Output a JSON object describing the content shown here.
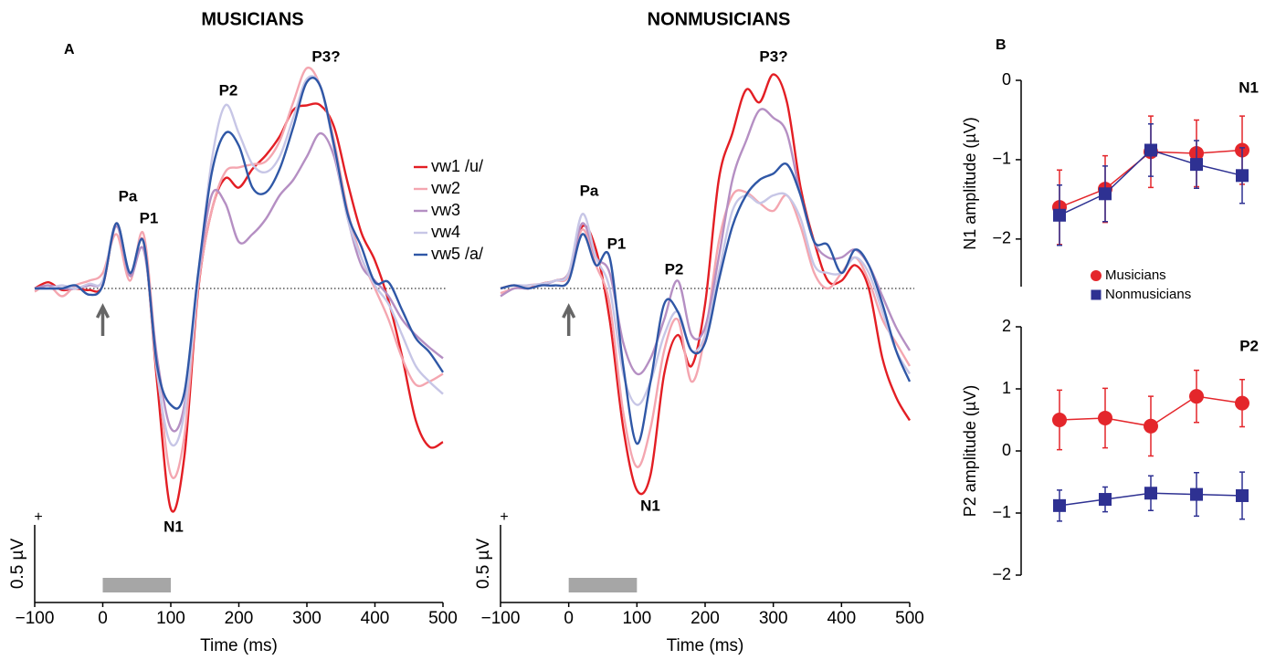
{
  "chart_data": [
    {
      "type": "erp",
      "panel_label": "A",
      "title": "MUSICIANS",
      "xlabel": "Time (ms)",
      "x": [
        -100,
        -80,
        -60,
        -40,
        -20,
        0,
        20,
        40,
        60,
        80,
        100,
        120,
        140,
        160,
        180,
        200,
        220,
        240,
        260,
        280,
        300,
        320,
        340,
        360,
        380,
        400,
        420,
        440,
        460,
        480,
        500
      ],
      "xlim": [
        -100,
        500
      ],
      "xticks": [
        {
          "value": -100,
          "label": "−100"
        },
        0,
        100,
        200,
        300,
        400,
        500
      ],
      "ylim": [
        -1.5,
        1.5
      ],
      "zero_line": true,
      "scale_bar": {
        "value": 0.5,
        "label": "0.5 µV",
        "sign": "+"
      },
      "stimulus": [
        0,
        100
      ],
      "annotations": [
        "Pa",
        "P1",
        "N1",
        "P2",
        "P3?"
      ],
      "series": [
        {
          "name": "vw1 /u/",
          "color": "#e31e24",
          "values": [
            0,
            0.04,
            -0.01,
            0,
            -0.01,
            0.02,
            0.42,
            0.09,
            0.3,
            -0.61,
            -1.42,
            -1.08,
            -0.02,
            0.5,
            0.71,
            0.65,
            0.77,
            0.86,
            0.98,
            1.15,
            1.18,
            1.18,
            1.04,
            0.68,
            0.36,
            0.18,
            -0.08,
            -0.44,
            -0.85,
            -1.02,
            -0.99
          ]
        },
        {
          "name": "vw2",
          "color": "#f4a6b0",
          "values": [
            -0.02,
            0.02,
            -0.05,
            0.02,
            0.05,
            0.1,
            0.35,
            0.05,
            0.35,
            -0.5,
            -1.2,
            -0.95,
            0,
            0.5,
            0.75,
            0.78,
            0.8,
            0.82,
            0.95,
            1.2,
            1.42,
            1.3,
            0.95,
            0.5,
            0.2,
            0,
            -0.2,
            -0.45,
            -0.62,
            -0.6,
            -0.55
          ]
        },
        {
          "name": "vw3",
          "color": "#b58fc3",
          "values": [
            0,
            0.02,
            0,
            0,
            0.02,
            0.05,
            0.4,
            0.08,
            0.25,
            -0.45,
            -0.9,
            -0.75,
            0.05,
            0.6,
            0.55,
            0.3,
            0.35,
            0.45,
            0.6,
            0.7,
            0.85,
            1.0,
            0.85,
            0.45,
            0.15,
            0.05,
            -0.05,
            -0.2,
            -0.3,
            -0.38,
            -0.45
          ]
        },
        {
          "name": "vw4",
          "color": "#c7c6e6",
          "values": [
            0,
            0,
            0.02,
            0,
            0.03,
            0.05,
            0.42,
            0.1,
            0.3,
            -0.55,
            -1.0,
            -0.8,
            0.05,
            0.82,
            1.18,
            1.0,
            0.8,
            0.75,
            0.85,
            1.1,
            1.35,
            1.3,
            0.9,
            0.45,
            0.2,
            0.02,
            -0.1,
            -0.3,
            -0.5,
            -0.6,
            -0.68
          ]
        },
        {
          "name": "vw5 /a/",
          "color": "#2f57a6",
          "values": [
            0,
            0,
            0,
            0.02,
            -0.04,
            0.02,
            0.42,
            0.1,
            0.3,
            -0.5,
            -0.75,
            -0.67,
            0.09,
            0.74,
            1.0,
            0.92,
            0.65,
            0.62,
            0.77,
            1.04,
            1.33,
            1.3,
            0.92,
            0.48,
            0.27,
            0.04,
            0.04,
            -0.14,
            -0.32,
            -0.41,
            -0.54
          ]
        }
      ]
    },
    {
      "type": "erp",
      "title": "NONMUSICIANS",
      "xlabel": "Time (ms)",
      "x": [
        -100,
        -80,
        -60,
        -40,
        -20,
        0,
        20,
        40,
        60,
        80,
        100,
        120,
        140,
        160,
        180,
        200,
        220,
        240,
        260,
        280,
        300,
        320,
        340,
        360,
        380,
        400,
        420,
        440,
        460,
        480,
        500
      ],
      "xlim": [
        -100,
        500
      ],
      "xticks": [
        {
          "value": -100,
          "label": "−100"
        },
        0,
        100,
        200,
        300,
        400,
        500
      ],
      "ylim": [
        -1.5,
        1.5
      ],
      "zero_line": true,
      "scale_bar": {
        "value": 0.5,
        "label": "0.5 µV",
        "sign": "+"
      },
      "stimulus": [
        0,
        100
      ],
      "annotations": [
        "Pa",
        "P1",
        "P2",
        "N1",
        "P3?"
      ],
      "series": [
        {
          "color": "#e31e24",
          "values": [
            0,
            0.02,
            0,
            0.03,
            0.05,
            0.1,
            0.4,
            0.25,
            -0.2,
            -0.9,
            -1.3,
            -1.2,
            -0.55,
            -0.3,
            -0.5,
            -0.1,
            0.7,
            1.0,
            1.28,
            1.2,
            1.38,
            1.2,
            0.65,
            0.3,
            0.05,
            0.05,
            0.15,
            0,
            -0.45,
            -0.7,
            -0.85
          ]
        },
        {
          "color": "#f4a6b0",
          "values": [
            -0.03,
            0,
            0.02,
            0.03,
            0.05,
            0.08,
            0.38,
            0.15,
            -0.1,
            -0.8,
            -1.15,
            -0.9,
            -0.4,
            -0.2,
            -0.6,
            -0.3,
            0.3,
            0.6,
            0.62,
            0.55,
            0.5,
            0.6,
            0.4,
            0.1,
            0,
            0.1,
            0.2,
            0.05,
            -0.2,
            -0.35,
            -0.5
          ]
        },
        {
          "color": "#b58fc3",
          "values": [
            -0.05,
            0,
            0,
            0.02,
            0.05,
            0.1,
            0.42,
            0.2,
            0.1,
            -0.35,
            -0.55,
            -0.45,
            -0.2,
            0.05,
            -0.3,
            -0.25,
            0.2,
            0.7,
            0.95,
            1.15,
            1.1,
            1.0,
            0.6,
            0.3,
            0.2,
            0.2,
            0.25,
            0.15,
            -0.05,
            -0.25,
            -0.4
          ]
        },
        {
          "color": "#c7c6e6",
          "values": [
            0,
            0.02,
            0.02,
            0.03,
            0.05,
            0.1,
            0.48,
            0.2,
            0,
            -0.55,
            -0.75,
            -0.6,
            -0.3,
            -0.15,
            -0.4,
            -0.3,
            0.1,
            0.5,
            0.6,
            0.55,
            0.6,
            0.6,
            0.45,
            0.15,
            0.1,
            0.1,
            0.2,
            0.1,
            -0.15,
            -0.4,
            -0.55
          ]
        },
        {
          "color": "#2f57a6",
          "values": [
            0,
            0.02,
            0,
            0.02,
            0.02,
            0.05,
            0.35,
            0.15,
            0.2,
            -0.5,
            -1.0,
            -0.6,
            -0.1,
            -0.15,
            -0.4,
            -0.35,
            0.05,
            0.4,
            0.6,
            0.7,
            0.74,
            0.8,
            0.6,
            0.3,
            0.28,
            0.1,
            0.25,
            0.15,
            -0.1,
            -0.4,
            -0.6
          ]
        }
      ]
    },
    {
      "type": "errorbar",
      "panel_label": "B",
      "title": "N1",
      "ylabel": "N1 amplitude (µV)",
      "categories": [
        null,
        null,
        null,
        null,
        null
      ],
      "ylim": [
        -2.6,
        0
      ],
      "yticks": [
        0,
        {
          "value": -1,
          "label": "−1"
        },
        {
          "value": -2,
          "label": "−2"
        }
      ],
      "legend": true,
      "series": [
        {
          "name": "Musicians",
          "color": "#e4262b",
          "marker": "circle",
          "values": [
            -1.6,
            -1.37,
            -0.9,
            -0.92,
            -0.88
          ],
          "errors": [
            0.47,
            0.42,
            0.45,
            0.42,
            0.43
          ]
        },
        {
          "name": "Nonmusicians",
          "color": "#2e3192",
          "marker": "square",
          "values": [
            -1.7,
            -1.43,
            -0.88,
            -1.06,
            -1.2
          ],
          "errors": [
            0.38,
            0.35,
            0.33,
            0.3,
            0.35
          ]
        }
      ]
    },
    {
      "type": "errorbar",
      "title": "P2",
      "ylabel": "P2 amplitude (µV)",
      "categories": [
        null,
        null,
        null,
        null,
        null
      ],
      "ylim": [
        -2,
        2
      ],
      "yticks": [
        2,
        1,
        0,
        {
          "value": -1,
          "label": "−1"
        },
        {
          "value": -2,
          "label": "−2"
        }
      ],
      "legend": false,
      "series": [
        {
          "color": "#e4262b",
          "marker": "circle",
          "values": [
            0.5,
            0.53,
            0.4,
            0.88,
            0.77
          ],
          "errors": [
            0.48,
            0.48,
            0.48,
            0.42,
            0.38
          ]
        },
        {
          "color": "#2e3192",
          "marker": "square",
          "values": [
            -0.88,
            -0.78,
            -0.68,
            -0.7,
            -0.72
          ],
          "errors": [
            0.25,
            0.2,
            0.28,
            0.35,
            0.38
          ]
        }
      ]
    }
  ]
}
